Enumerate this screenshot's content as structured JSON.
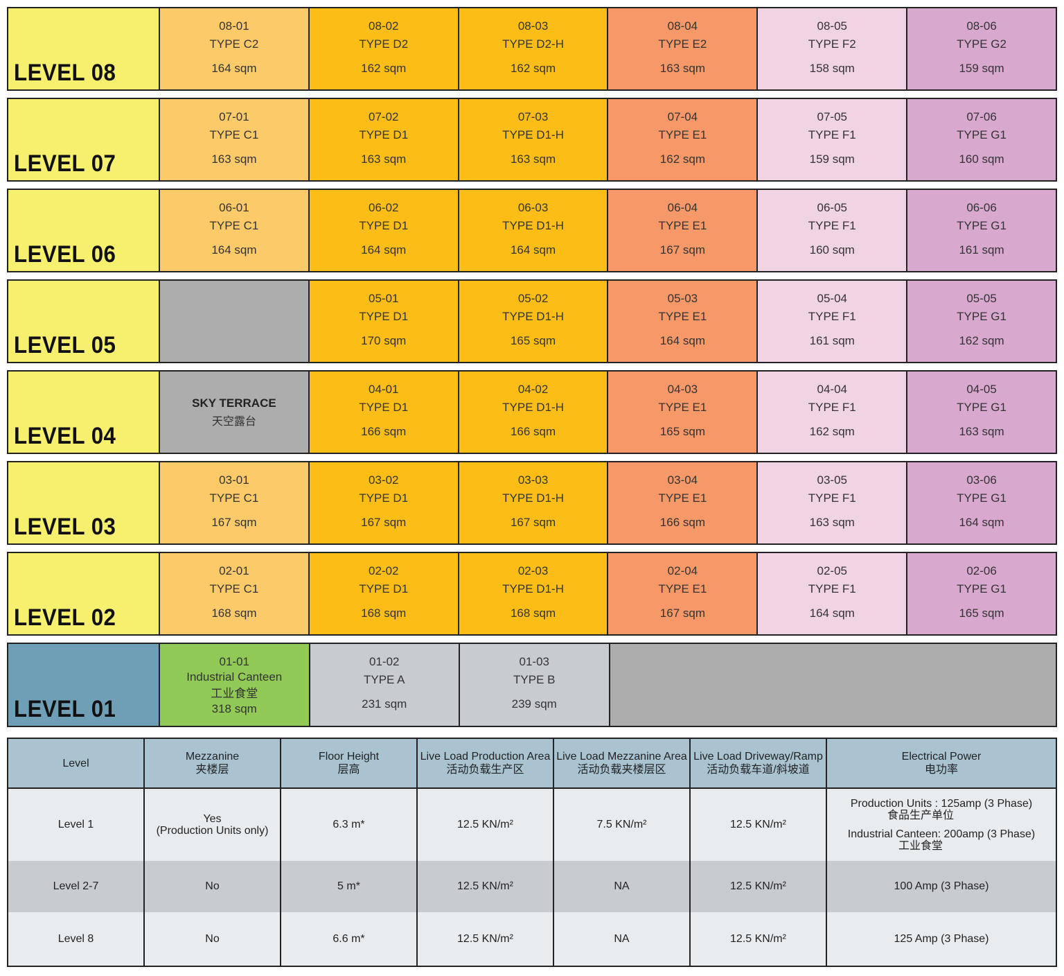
{
  "colors": {
    "level_label": "#f7f06e",
    "level_01_label": "#6f9fb6",
    "type_C": "#fdca69",
    "type_D": "#fcbe16",
    "type_E": "#f69867",
    "type_F": "#f1d4e4",
    "type_G": "#d8a8cf",
    "unavailable": "#adadad",
    "ground_units": "#c8ccd1",
    "canteen": "#90c955",
    "table_header": "#a9c3d1"
  },
  "levels": [
    {
      "label": "LEVEL 08",
      "units": [
        {
          "id": "08-01",
          "type": "TYPE C2",
          "area": "164 sqm",
          "color": "C"
        },
        {
          "id": "08-02",
          "type": "TYPE D2",
          "area": "162 sqm",
          "color": "D"
        },
        {
          "id": "08-03",
          "type": "TYPE D2-H",
          "area": "162 sqm",
          "color": "D"
        },
        {
          "id": "08-04",
          "type": "TYPE E2",
          "area": "163 sqm",
          "color": "E"
        },
        {
          "id": "08-05",
          "type": "TYPE F2",
          "area": "158 sqm",
          "color": "F"
        },
        {
          "id": "08-06",
          "type": "TYPE G2",
          "area": "159 sqm",
          "color": "G"
        }
      ]
    },
    {
      "label": "LEVEL 07",
      "units": [
        {
          "id": "07-01",
          "type": "TYPE C1",
          "area": "163 sqm",
          "color": "C"
        },
        {
          "id": "07-02",
          "type": "TYPE D1",
          "area": "163 sqm",
          "color": "D"
        },
        {
          "id": "07-03",
          "type": "TYPE D1-H",
          "area": "163 sqm",
          "color": "D"
        },
        {
          "id": "07-04",
          "type": "TYPE E1",
          "area": "162 sqm",
          "color": "E"
        },
        {
          "id": "07-05",
          "type": "TYPE F1",
          "area": "159 sqm",
          "color": "F"
        },
        {
          "id": "07-06",
          "type": "TYPE G1",
          "area": "160 sqm",
          "color": "G"
        }
      ]
    },
    {
      "label": "LEVEL 06",
      "units": [
        {
          "id": "06-01",
          "type": "TYPE C1",
          "area": "164 sqm",
          "color": "C"
        },
        {
          "id": "06-02",
          "type": "TYPE D1",
          "area": "164 sqm",
          "color": "D"
        },
        {
          "id": "06-03",
          "type": "TYPE D1-H",
          "area": "164 sqm",
          "color": "D"
        },
        {
          "id": "06-04",
          "type": "TYPE E1",
          "area": "167 sqm",
          "color": "E"
        },
        {
          "id": "06-05",
          "type": "TYPE F1",
          "area": "160 sqm",
          "color": "F"
        },
        {
          "id": "06-06",
          "type": "TYPE G1",
          "area": "161 sqm",
          "color": "G"
        }
      ]
    },
    {
      "label": "LEVEL 05",
      "units": [
        {
          "id": "",
          "type": "",
          "area": "",
          "color": "X"
        },
        {
          "id": "05-01",
          "type": "TYPE D1",
          "area": "170 sqm",
          "color": "D"
        },
        {
          "id": "05-02",
          "type": "TYPE D1-H",
          "area": "165 sqm",
          "color": "D"
        },
        {
          "id": "05-03",
          "type": "TYPE E1",
          "area": "164 sqm",
          "color": "E"
        },
        {
          "id": "05-04",
          "type": "TYPE F1",
          "area": "161 sqm",
          "color": "F"
        },
        {
          "id": "05-05",
          "type": "TYPE G1",
          "area": "162 sqm",
          "color": "G"
        }
      ]
    },
    {
      "label": "LEVEL 04",
      "sky_terrace": {
        "name": "SKY TERRACE",
        "name_cn": "天空露台"
      },
      "units": [
        {
          "id": "04-01",
          "type": "TYPE D1",
          "area": "166 sqm",
          "color": "D"
        },
        {
          "id": "04-02",
          "type": "TYPE D1-H",
          "area": "166 sqm",
          "color": "D"
        },
        {
          "id": "04-03",
          "type": "TYPE E1",
          "area": "165 sqm",
          "color": "E"
        },
        {
          "id": "04-04",
          "type": "TYPE F1",
          "area": "162 sqm",
          "color": "F"
        },
        {
          "id": "04-05",
          "type": "TYPE G1",
          "area": "163 sqm",
          "color": "G"
        }
      ]
    },
    {
      "label": "LEVEL 03",
      "units": [
        {
          "id": "03-01",
          "type": "TYPE C1",
          "area": "167 sqm",
          "color": "C"
        },
        {
          "id": "03-02",
          "type": "TYPE D1",
          "area": "167 sqm",
          "color": "D"
        },
        {
          "id": "03-03",
          "type": "TYPE D1-H",
          "area": "167 sqm",
          "color": "D"
        },
        {
          "id": "03-04",
          "type": "TYPE E1",
          "area": "166 sqm",
          "color": "E"
        },
        {
          "id": "03-05",
          "type": "TYPE F1",
          "area": "163 sqm",
          "color": "F"
        },
        {
          "id": "03-06",
          "type": "TYPE G1",
          "area": "164 sqm",
          "color": "G"
        }
      ]
    },
    {
      "label": "LEVEL 02",
      "units": [
        {
          "id": "02-01",
          "type": "TYPE C1",
          "area": "168 sqm",
          "color": "C"
        },
        {
          "id": "02-02",
          "type": "TYPE D1",
          "area": "168 sqm",
          "color": "D"
        },
        {
          "id": "02-03",
          "type": "TYPE D1-H",
          "area": "168 sqm",
          "color": "D"
        },
        {
          "id": "02-04",
          "type": "TYPE E1",
          "area": "167 sqm",
          "color": "E"
        },
        {
          "id": "02-05",
          "type": "TYPE F1",
          "area": "164 sqm",
          "color": "F"
        },
        {
          "id": "02-06",
          "type": "TYPE G1",
          "area": "165 sqm",
          "color": "G"
        }
      ]
    }
  ],
  "level01": {
    "label": "LEVEL 01",
    "canteen": {
      "id": "01-01",
      "name": "Industrial Canteen",
      "name_cn": "工业食堂",
      "area": "318 sqm"
    },
    "units": [
      {
        "id": "01-02",
        "type": "TYPE A",
        "area": "231 sqm"
      },
      {
        "id": "01-03",
        "type": "TYPE B",
        "area": "239 sqm"
      }
    ]
  },
  "specs": {
    "headers": [
      {
        "en": "Level",
        "cn": ""
      },
      {
        "en": "Mezzanine",
        "cn": "夹楼层"
      },
      {
        "en": "Floor Height",
        "cn": "层高"
      },
      {
        "en": "Live Load Production Area",
        "cn": "活动负载生产区"
      },
      {
        "en": "Live Load Mezzanine Area",
        "cn": "活动负载夹楼层区"
      },
      {
        "en": "Live Load Driveway/Ramp",
        "cn": "活动负载车道/斜坡道"
      },
      {
        "en": "Electrical Power",
        "cn": "电功率"
      }
    ],
    "rows": [
      {
        "level": "Level 1",
        "mezz": "Yes",
        "mezz_note": "(Production Units only)",
        "height": "6.3 m*",
        "prod": "12.5 KN/m²",
        "mezz_load": "7.5 KN/m²",
        "drive": "12.5 KN/m²",
        "power_1": "Production Units : 125amp (3 Phase)",
        "power_1_cn": "食品生产单位",
        "power_2": "Industrial Canteen: 200amp (3 Phase)",
        "power_2_cn": "工业食堂"
      },
      {
        "level": "Level 2-7",
        "mezz": "No",
        "height": "5 m*",
        "prod": "12.5 KN/m²",
        "mezz_load": "NA",
        "drive": "12.5 KN/m²",
        "power": "100 Amp (3 Phase)"
      },
      {
        "level": "Level 8",
        "mezz": "No",
        "height": "6.6 m*",
        "prod": "12.5 KN/m²",
        "mezz_load": "NA",
        "drive": "12.5 KN/m²",
        "power": "125 Amp (3 Phase)"
      }
    ]
  }
}
